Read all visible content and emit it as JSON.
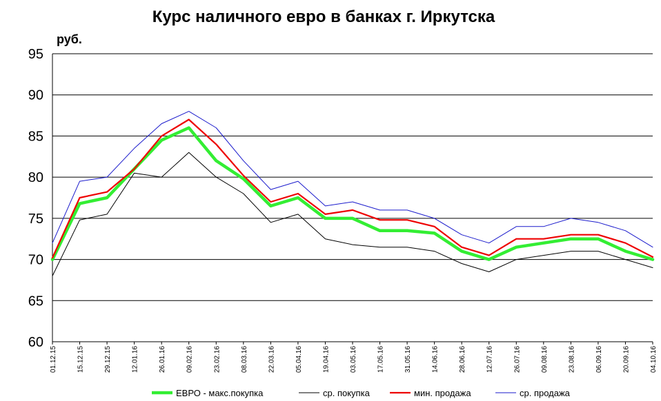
{
  "chart_data": {
    "type": "line",
    "title": "Курс наличного евро в банках г. Иркутска",
    "unit_label": "руб.",
    "xlabel": "",
    "ylabel": "",
    "ylim": [
      60,
      95
    ],
    "y_ticks": [
      "60",
      "65",
      "70",
      "75",
      "80",
      "85",
      "90",
      "95"
    ],
    "grid": true,
    "legend_position": "bottom",
    "x_tick_labels": [
      "01.12.15",
      "15.12.15",
      "29.12.15",
      "12.01.16",
      "26.01.16",
      "09.02.16",
      "23.02.16",
      "08.03.16",
      "22.03.16",
      "05.04.16",
      "19.04.16",
      "03.05.16",
      "17.05.16",
      "31.05.16",
      "14.06.16",
      "28.06.16",
      "12.07.16",
      "26.07.16",
      "09.08.16",
      "23.08.16",
      "06.09.16",
      "20.09.16",
      "04.10.16"
    ],
    "x": [
      "01.12.15",
      "15.12.15",
      "29.12.15",
      "12.01.16",
      "26.01.16",
      "09.02.16",
      "23.02.16",
      "08.03.16",
      "22.03.16",
      "05.04.16",
      "19.04.16",
      "03.05.16",
      "17.05.16",
      "31.05.16",
      "14.06.16",
      "28.06.16",
      "12.07.16",
      "26.07.16",
      "09.08.16",
      "23.08.16",
      "06.09.16",
      "20.09.16",
      "04.10.16"
    ],
    "series": [
      {
        "name": "ЕВРО - макс.покупка",
        "color": "#33ee33",
        "width": 4.5,
        "values": [
          70.0,
          76.8,
          77.5,
          81.0,
          84.5,
          86.0,
          82.0,
          79.8,
          76.5,
          77.5,
          75.0,
          75.0,
          73.5,
          73.5,
          73.2,
          71.0,
          70.0,
          71.5,
          72.0,
          72.5,
          72.5,
          71.0,
          70.0
        ]
      },
      {
        "name": "ср. покупка",
        "color": "#000000",
        "width": 1,
        "values": [
          68.0,
          74.8,
          75.5,
          80.5,
          80.0,
          83.0,
          80.0,
          78.0,
          74.5,
          75.5,
          72.5,
          71.8,
          71.5,
          71.5,
          71.0,
          69.5,
          68.5,
          70.0,
          70.5,
          71.0,
          71.0,
          70.0,
          69.0
        ]
      },
      {
        "name": "мин. продажа",
        "color": "#ee0000",
        "width": 2.2,
        "values": [
          70.2,
          77.5,
          78.2,
          81.0,
          85.0,
          87.0,
          84.0,
          80.2,
          77.0,
          78.0,
          75.5,
          76.0,
          74.8,
          74.8,
          74.0,
          71.5,
          70.5,
          72.5,
          72.5,
          73.0,
          73.0,
          72.0,
          70.3
        ]
      },
      {
        "name": "ср. продажа",
        "color": "#1a1acc",
        "width": 1,
        "values": [
          72.0,
          79.5,
          80.0,
          83.5,
          86.5,
          88.0,
          86.0,
          82.0,
          78.5,
          79.5,
          76.5,
          77.0,
          76.0,
          76.0,
          75.0,
          73.0,
          72.0,
          74.0,
          74.0,
          75.0,
          74.5,
          73.5,
          71.5
        ]
      }
    ]
  }
}
